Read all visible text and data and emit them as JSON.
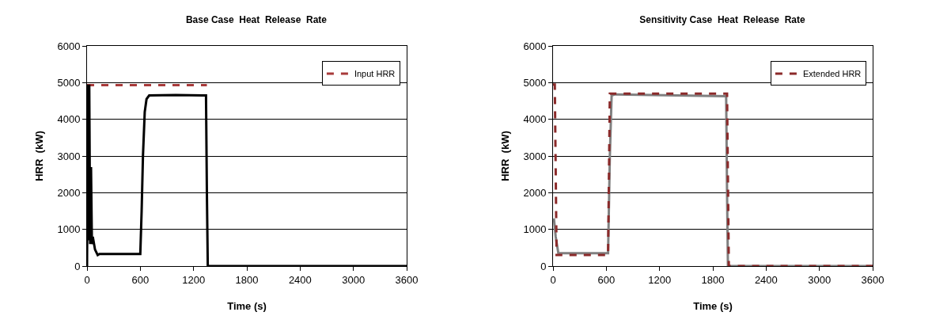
{
  "chart_data": [
    {
      "type": "line",
      "title": "Base Case  Heat  Release  Rate",
      "xlabel": "Time (s)",
      "ylabel": "HRR  (kW)",
      "xlim": [
        0,
        3600
      ],
      "xticks": [
        0,
        600,
        1200,
        1800,
        2400,
        3000,
        3600
      ],
      "ylim": [
        0,
        6000
      ],
      "yticks": [
        0,
        1000,
        2000,
        3000,
        4000,
        5000,
        6000
      ],
      "grid": "y",
      "legend": "top right",
      "marker": "none",
      "series": [
        {
          "name": "Input HRR",
          "color": "#a83a3a",
          "line_style": "dashed",
          "x": [
            0,
            1350
          ],
          "values": [
            4930,
            4930
          ]
        },
        {
          "color": "#000000",
          "line_style": "solid",
          "x": [
            0,
            10,
            20,
            25,
            35,
            45,
            55,
            65,
            90,
            120,
            140,
            600,
            615,
            630,
            650,
            670,
            700,
            1000,
            1340,
            1350,
            1360,
            3600
          ],
          "values": [
            0,
            4950,
            700,
            4950,
            600,
            2700,
            600,
            800,
            450,
            300,
            330,
            330,
            1500,
            3000,
            4200,
            4550,
            4650,
            4660,
            4650,
            2000,
            0,
            0
          ]
        }
      ]
    },
    {
      "type": "line",
      "title": "Sensitivity Case  Heat  Release  Rate",
      "xlabel": "Time (s)",
      "ylabel": "HRR  (kW)",
      "xlim": [
        0,
        3600
      ],
      "xticks": [
        0,
        600,
        1200,
        1800,
        2400,
        3000,
        3600
      ],
      "ylim": [
        0,
        6000
      ],
      "yticks": [
        0,
        1000,
        2000,
        3000,
        4000,
        5000,
        6000
      ],
      "grid": "y",
      "legend": "top right",
      "marker": "none",
      "series": [
        {
          "color": "#808080",
          "line_style": "solid",
          "x": [
            10,
            30,
            60,
            620,
            640,
            660,
            700,
            1950,
            1960,
            1970,
            3600
          ],
          "values": [
            1300,
            800,
            350,
            350,
            3000,
            4650,
            4680,
            4630,
            2000,
            0,
            0
          ]
        },
        {
          "name": "Extended HRR",
          "color": "#8b2a2a",
          "line_style": "dashed",
          "x": [
            0,
            20,
            40,
            620,
            640,
            1960,
            1980,
            3600
          ],
          "values": [
            4950,
            4950,
            300,
            300,
            4700,
            4700,
            0,
            0
          ]
        }
      ]
    }
  ]
}
